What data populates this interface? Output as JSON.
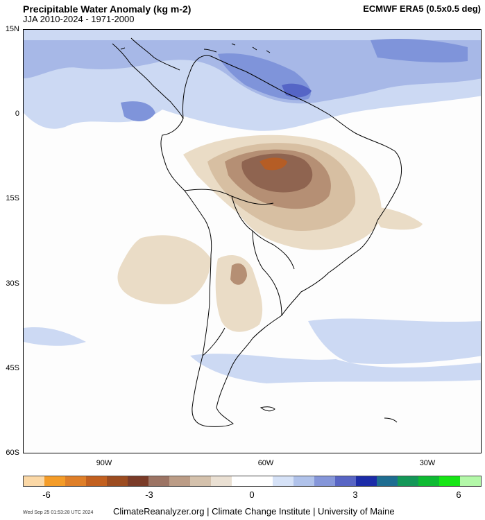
{
  "header": {
    "title": "Precipitable Water Anomaly (kg m-2)",
    "subtitle": "JJA 2010-2024 - 1971-2000",
    "source": "ECMWF ERA5 (0.5x0.5 deg)"
  },
  "map": {
    "lat_labels": [
      "15N",
      "0",
      "15S",
      "30S",
      "45S",
      "60S"
    ],
    "lon_labels": [
      "90W",
      "60W",
      "30W"
    ],
    "colors": {
      "coast": "#000000",
      "ocean_bg": "#fdfdfd",
      "blue_light": "#ccd9f3",
      "blue_mid": "#a7b8e7",
      "blue_dark": "#7f94da",
      "blue_deep": "#5565c6",
      "tan_light": "#eadcc6",
      "tan_mid": "#d7bfa2",
      "brown_mid": "#b58f74",
      "brown_dark": "#8f6450",
      "brown_core": "#b55d25"
    }
  },
  "colorbar": {
    "colors": [
      "#fbd8a6",
      "#f49c28",
      "#df7f28",
      "#c2601f",
      "#9c4c20",
      "#7a3b28",
      "#9c7464",
      "#bb9c86",
      "#d4c1ac",
      "#eae0d3",
      "#ffffff",
      "#ffffff",
      "#d6e2f7",
      "#b0c2ea",
      "#8596d9",
      "#5865c4",
      "#1c2ca8",
      "#1e6d91",
      "#149758",
      "#0eba32",
      "#16e515",
      "#b3f8a8"
    ],
    "ticks": [
      "-6",
      "-3",
      "0",
      "3",
      "6"
    ]
  },
  "footer": {
    "timestamp": "Wed Sep 25 01:53:28 UTC 2024",
    "credits": "ClimateReanalyzer.org | Climate Change Institute | University of Maine"
  }
}
